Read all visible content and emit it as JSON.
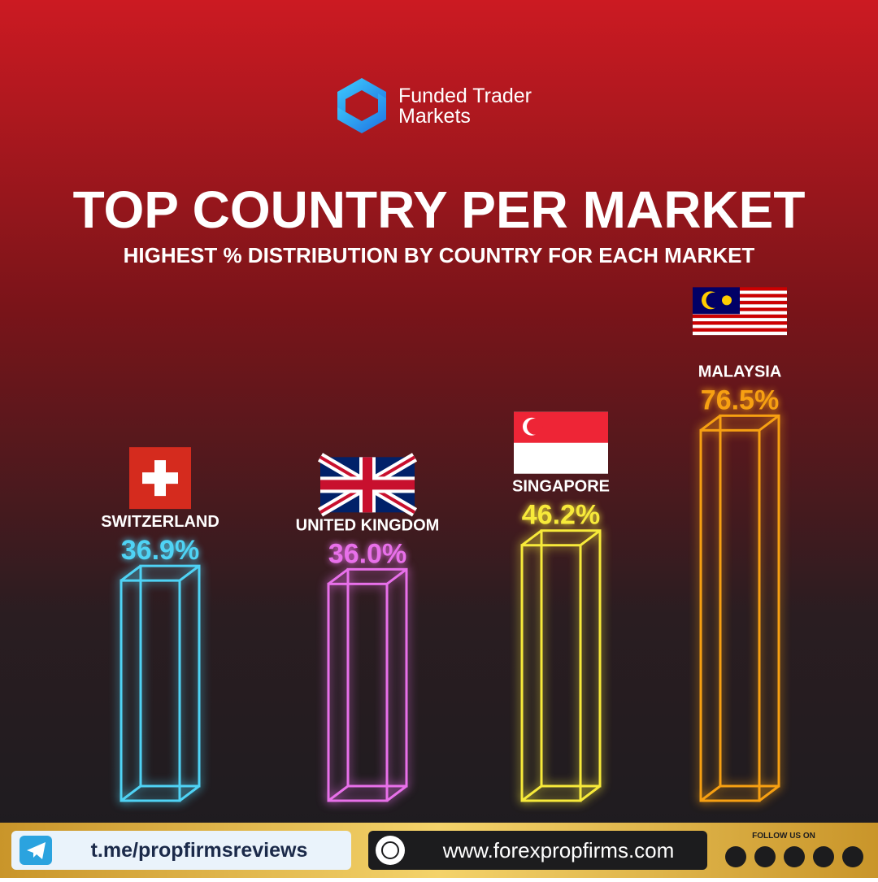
{
  "brand": {
    "line1": "Funded Trader",
    "line2": "Markets"
  },
  "chart_data": {
    "type": "bar",
    "title": "TOP COUNTRY PER MARKET",
    "subtitle": "HIGHEST % DISTRIBUTION BY COUNTRY FOR EACH MARKET",
    "categories": [
      "SWITZERLAND",
      "UNITED KINGDOM",
      "SINGAPORE",
      "MALAYSIA"
    ],
    "values": [
      36.9,
      36.0,
      46.2,
      76.5
    ],
    "value_labels": [
      "36.9%",
      "36.0%",
      "46.2%",
      "76.5%"
    ],
    "colors": [
      "#4fd3f5",
      "#e870ea",
      "#f7ea3a",
      "#f7a012"
    ],
    "ylim": [
      -25,
      80
    ]
  },
  "footer": {
    "telegram": "t.me/propfirmsreviews",
    "website": "www.forexpropfirms.com",
    "follow": "FOLLOW US ON"
  }
}
